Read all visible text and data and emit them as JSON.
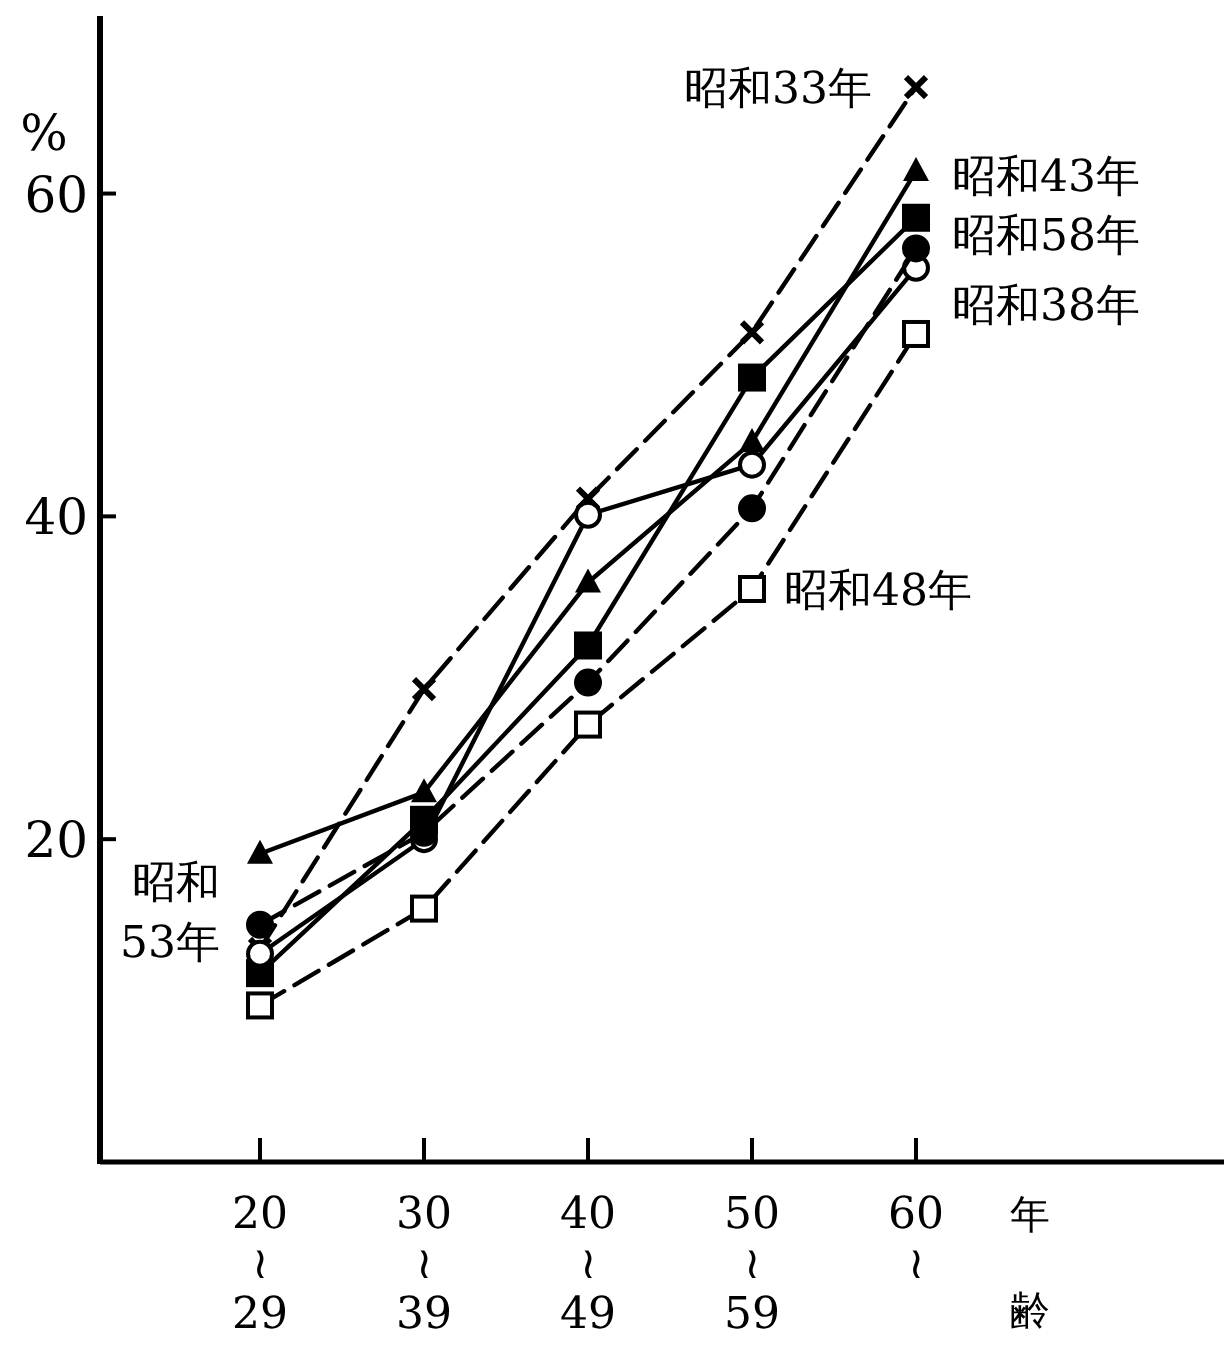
{
  "chart_data": {
    "type": "line",
    "xlabel": "年齢",
    "ylabel": "%",
    "categories": [
      "20\n≀\n29",
      "30\n≀\n39",
      "40\n≀\n49",
      "50\n≀\n59",
      "60\n≀"
    ],
    "ylim": [
      0,
      71
    ],
    "yticks": [
      20,
      40,
      60
    ],
    "series": [
      {
        "name": "昭和33年",
        "color": "#000000",
        "marker": "cross",
        "line_style": "dashed",
        "values": [
          13.2,
          29.3,
          41.1,
          51.4,
          66.6
        ]
      },
      {
        "name": "昭和43年",
        "color": "#000000",
        "marker": "triangle",
        "line_style": "solid",
        "values": [
          19.1,
          22.9,
          35.9,
          44.6,
          61.4
        ]
      },
      {
        "name": "昭和58年",
        "color": "#000000",
        "marker": "square",
        "line_style": "solid",
        "values": [
          11.7,
          21.2,
          32.0,
          48.6,
          58.5
        ]
      },
      {
        "name": "昭和38年",
        "color": "#000000",
        "marker": "circle-open",
        "line_style": "solid",
        "values": [
          12.9,
          20.0,
          40.1,
          43.2,
          55.4
        ]
      },
      {
        "name": "昭和48年",
        "color": "#000000",
        "marker": "square-open",
        "line_style": "dashed",
        "values": [
          9.7,
          15.7,
          27.1,
          35.5,
          51.3
        ]
      },
      {
        "name": "昭和\n53年",
        "color": "#000000",
        "marker": "circle",
        "line_style": "dashed",
        "values": [
          14.7,
          20.4,
          29.7,
          40.5,
          56.6
        ]
      }
    ]
  }
}
